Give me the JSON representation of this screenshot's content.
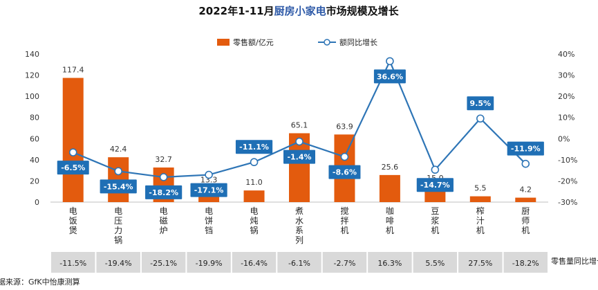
{
  "chart_data": {
    "type": "bar",
    "title_prefix": "2022年1-11月",
    "title_accent": "厨房小家电",
    "title_suffix": "市场规模及增长",
    "categories": [
      "电饭煲",
      "电压力锅",
      "电磁炉",
      "电饼铛",
      "电炖锅",
      "煮水系列",
      "搅拌机",
      "咖啡机",
      "豆浆机",
      "榨汁机",
      "厨师机"
    ],
    "series": [
      {
        "name": "零售额/亿元",
        "type": "bar",
        "axis": "left",
        "color": "#e35b0e",
        "values": [
          117.4,
          42.4,
          32.7,
          13.3,
          11.0,
          65.1,
          63.9,
          25.6,
          15.0,
          5.5,
          4.2
        ],
        "labels": [
          "117.4",
          "42.4",
          "32.7",
          "13.3",
          "11.0",
          "65.1",
          "63.9",
          "25.6",
          "15.0",
          "5.5",
          "4.2"
        ]
      },
      {
        "name": "额同比增长",
        "type": "line",
        "axis": "right",
        "color": "#2e75b6",
        "values": [
          -6.5,
          -15.4,
          -18.2,
          -17.1,
          -11.1,
          -1.4,
          -8.6,
          36.6,
          -14.7,
          9.5,
          -11.9
        ],
        "labels": [
          "-6.5%",
          "-15.4%",
          "-18.2%",
          "-17.1%",
          "-11.1%",
          "-1.4%",
          "-8.6%",
          "36.6%",
          "-14.7%",
          "9.5%",
          "-11.9%"
        ]
      }
    ],
    "y_left": {
      "min": 0,
      "max": 140,
      "ticks": [
        "0",
        "20",
        "40",
        "60",
        "80",
        "100",
        "120",
        "140"
      ]
    },
    "y_right": {
      "min": -30,
      "max": 40,
      "ticks": [
        "-30%",
        "-20%",
        "-10%",
        "0%",
        "10%",
        "20%",
        "30%",
        "40%"
      ]
    },
    "volume_growth": {
      "label": "零售量同比增长",
      "values": [
        "-11.5%",
        "-19.4%",
        "-25.1%",
        "-19.9%",
        "-16.4%",
        "-6.1%",
        "-2.7%",
        "16.3%",
        "5.5%",
        "27.5%",
        "-18.2%"
      ]
    },
    "legend_position": "top-center",
    "source": "数据来源：GfK中怡康测算"
  }
}
